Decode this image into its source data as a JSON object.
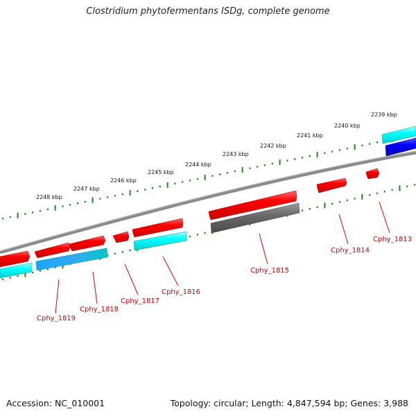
{
  "title": "Clostridium phytofermentans ISDg, complete genome",
  "footer": {
    "accession": "Accession: NC_010001",
    "summary": "Topology: circular; Length: 4,847,594 bp; Genes: 3,988"
  },
  "colors": {
    "forward_gene": "#ff0000",
    "backbone": "#808080",
    "ticks": "#1a8a1a",
    "cyan_feature": "#00ffff",
    "blue_feature": "#0000ff",
    "dark_feature": "#666666",
    "gene_label": "#cc0000"
  },
  "scale": {
    "ticks": [
      {
        "label": "2248 kbp"
      },
      {
        "label": "2247 kbp"
      },
      {
        "label": "2246 kbp"
      },
      {
        "label": "2245 kbp"
      },
      {
        "label": "2244 kbp"
      },
      {
        "label": "2243 kbp"
      },
      {
        "label": "2242 kbp"
      },
      {
        "label": "2241 kbp"
      },
      {
        "label": "2240 kbp"
      },
      {
        "label": "2239 kbp"
      }
    ]
  },
  "genes": [
    {
      "label": "Cphy_1819"
    },
    {
      "label": "Cphy_1818"
    },
    {
      "label": "Cphy_1817"
    },
    {
      "label": "Cphy_1816"
    },
    {
      "label": "Cphy_1815"
    },
    {
      "label": "Cphy_1814"
    },
    {
      "label": "Cphy_1813"
    }
  ]
}
